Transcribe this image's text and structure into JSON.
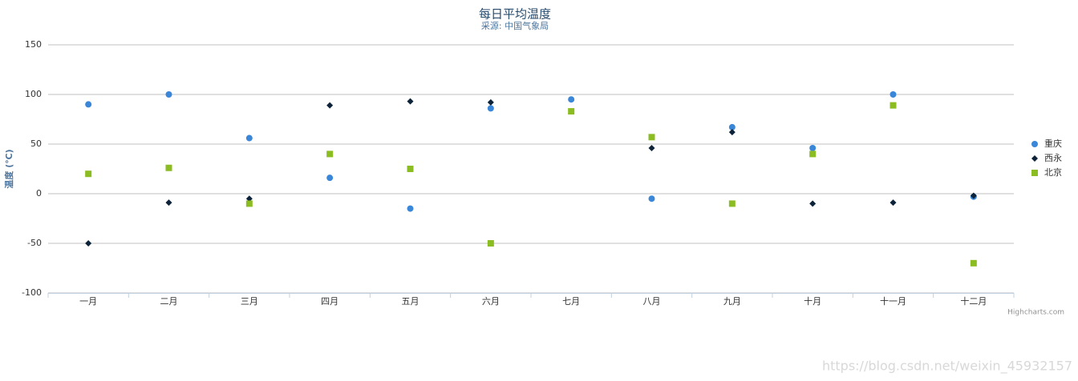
{
  "chart_data": {
    "type": "scatter",
    "title": "每日平均温度",
    "subtitle": "采源: 中国气象局",
    "y_axis_label": "温度 (℃)",
    "categories": [
      "一月",
      "二月",
      "三月",
      "四月",
      "五月",
      "六月",
      "七月",
      "八月",
      "九月",
      "十月",
      "十一月",
      "十二月"
    ],
    "series": [
      {
        "name": "重庆",
        "color": "#3a86d8",
        "marker": "circle",
        "values": [
          90,
          100,
          56,
          16,
          -15,
          86,
          95,
          -5,
          67,
          46,
          100,
          -3
        ]
      },
      {
        "name": "西永",
        "color": "#0d233a",
        "marker": "diamond",
        "values": [
          -50,
          -9,
          -5,
          89,
          93,
          92,
          null,
          46,
          62,
          -10,
          -9,
          -2
        ]
      },
      {
        "name": "北京",
        "color": "#8bbc21",
        "marker": "square",
        "values": [
          20,
          26,
          -10,
          40,
          25,
          -50,
          83,
          57,
          -10,
          40,
          89,
          -70
        ]
      }
    ],
    "ylim": [
      -100,
      150
    ],
    "yticks": [
      -100,
      -50,
      0,
      50,
      100,
      150
    ],
    "grid": true,
    "legend": "right",
    "credits": "Highcharts.com",
    "watermark": "https://blog.csdn.net/weixin_45932157"
  }
}
